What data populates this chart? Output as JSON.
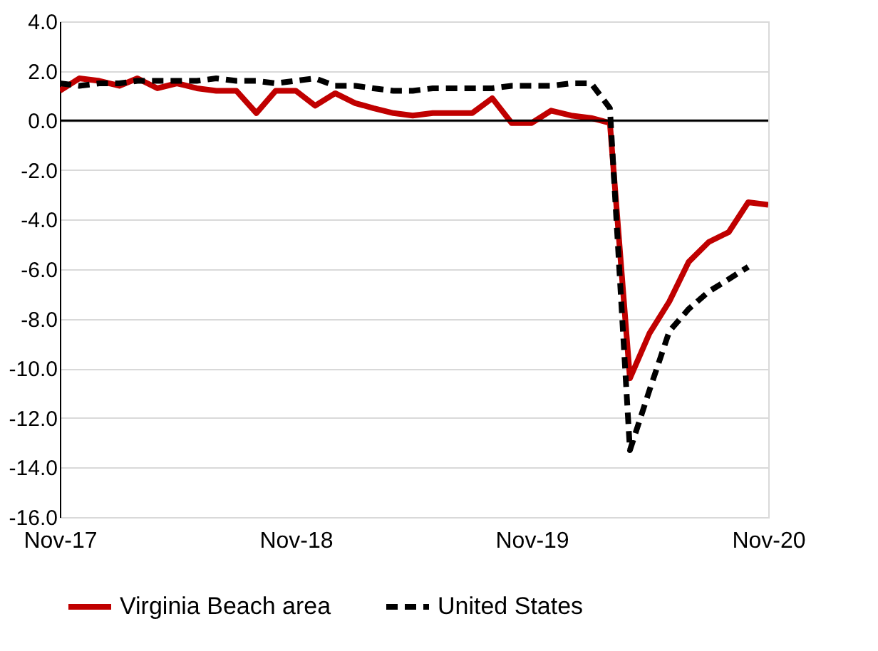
{
  "chart_data": {
    "type": "line",
    "x": [
      "2017-11",
      "2017-12",
      "2018-01",
      "2018-02",
      "2018-03",
      "2018-04",
      "2018-05",
      "2018-06",
      "2018-07",
      "2018-08",
      "2018-09",
      "2018-10",
      "2018-11",
      "2018-12",
      "2019-01",
      "2019-02",
      "2019-03",
      "2019-04",
      "2019-05",
      "2019-06",
      "2019-07",
      "2019-08",
      "2019-09",
      "2019-10",
      "2019-11",
      "2019-12",
      "2020-01",
      "2020-02",
      "2020-03",
      "2020-04",
      "2020-05",
      "2020-06",
      "2020-07",
      "2020-08",
      "2020-09",
      "2020-10",
      "2020-11"
    ],
    "series": [
      {
        "name": "Virginia Beach area",
        "color": "#c00000",
        "line_style": "solid",
        "values": [
          1.2,
          1.7,
          1.6,
          1.4,
          1.7,
          1.3,
          1.5,
          1.3,
          1.2,
          1.2,
          0.3,
          1.2,
          1.2,
          0.6,
          1.1,
          0.7,
          0.5,
          0.3,
          0.2,
          0.3,
          0.3,
          0.3,
          0.9,
          -0.1,
          -0.1,
          0.4,
          0.2,
          0.1,
          -0.1,
          -10.4,
          -8.6,
          -7.3,
          -5.7,
          -4.9,
          -4.5,
          -3.3,
          -3.4
        ]
      },
      {
        "name": "United States",
        "color": "#000000",
        "line_style": "dashed",
        "values": [
          1.5,
          1.4,
          1.5,
          1.5,
          1.6,
          1.6,
          1.6,
          1.6,
          1.7,
          1.6,
          1.6,
          1.5,
          1.6,
          1.7,
          1.4,
          1.4,
          1.3,
          1.2,
          1.2,
          1.3,
          1.3,
          1.3,
          1.3,
          1.4,
          1.4,
          1.4,
          1.5,
          1.5,
          0.5,
          -13.3,
          -10.9,
          -8.5,
          -7.6,
          -6.9,
          -6.4,
          -5.9,
          null
        ]
      }
    ],
    "xlim": [
      "2017-11",
      "2020-11"
    ],
    "xticks": [
      {
        "value": "2017-11",
        "label": "Nov-17"
      },
      {
        "value": "2018-11",
        "label": "Nov-18"
      },
      {
        "value": "2019-11",
        "label": "Nov-19"
      },
      {
        "value": "2020-11",
        "label": "Nov-20"
      }
    ],
    "ylim": [
      -16,
      4
    ],
    "yticks": [
      {
        "value": -16,
        "label": "-16.0"
      },
      {
        "value": -14,
        "label": "-14.0"
      },
      {
        "value": -12,
        "label": "-12.0"
      },
      {
        "value": -10,
        "label": "-10.0"
      },
      {
        "value": -8,
        "label": "-8.0"
      },
      {
        "value": -6,
        "label": "-6.0"
      },
      {
        "value": -4,
        "label": "-4.0"
      },
      {
        "value": -2,
        "label": "-2.0"
      },
      {
        "value": 0,
        "label": "0.0"
      },
      {
        "value": 2,
        "label": "2.0"
      },
      {
        "value": 4,
        "label": "4.0"
      }
    ],
    "ref_lines": [
      {
        "axis": "y",
        "value": 0,
        "color": "#000000"
      }
    ],
    "grid": "y",
    "legend": "bottom"
  }
}
